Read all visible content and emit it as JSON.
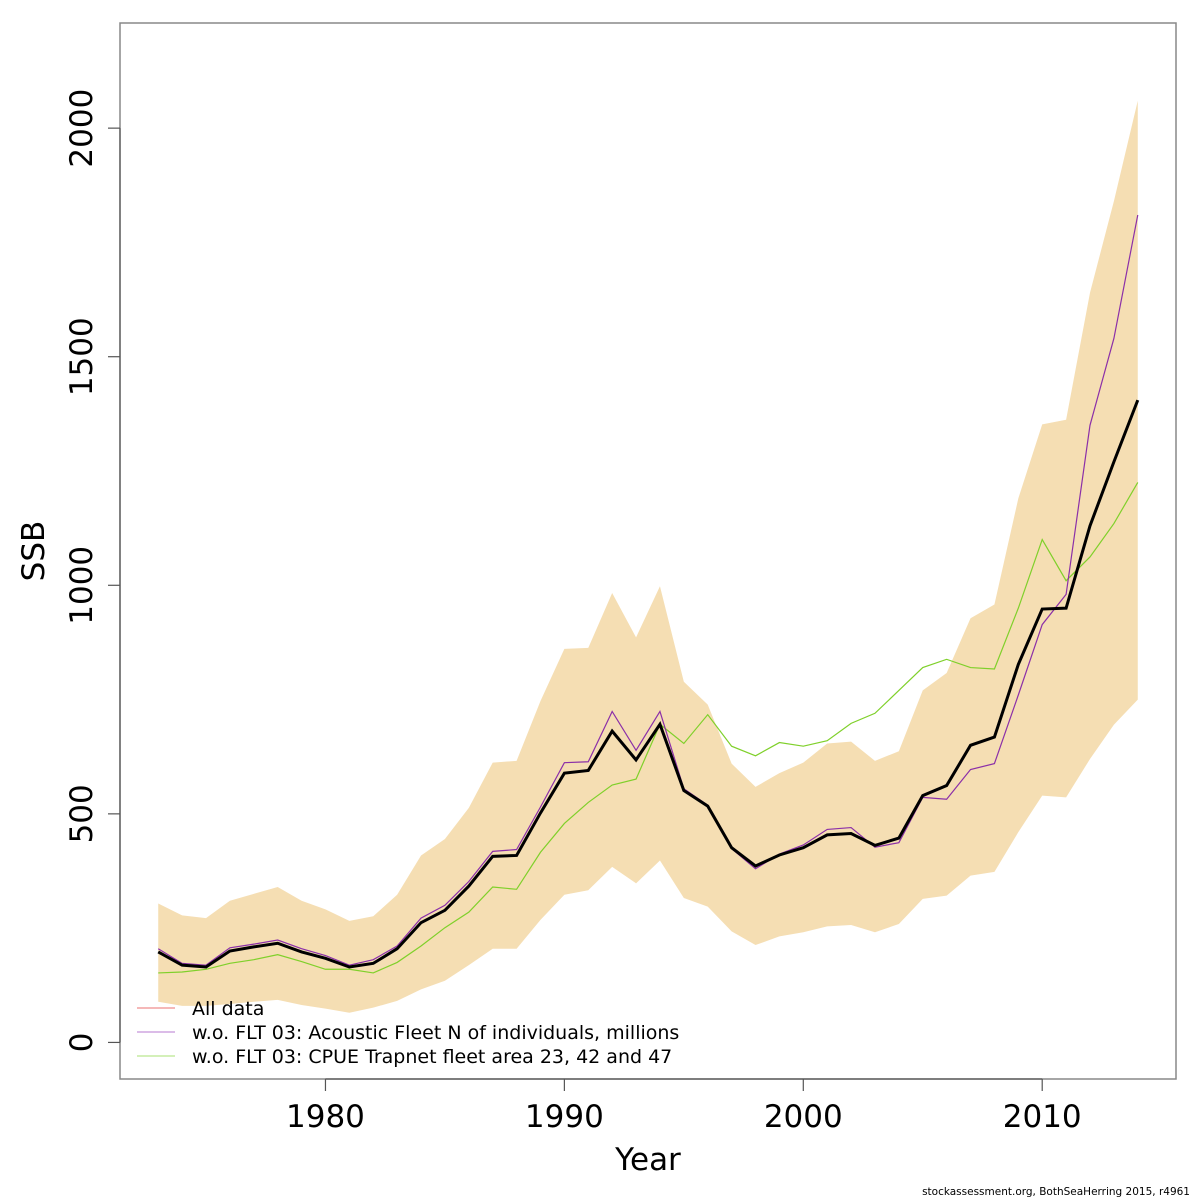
{
  "chart_data": {
    "type": "line",
    "title": "",
    "xlabel": "Year",
    "ylabel": "SSB",
    "xlim": [
      1971.4,
      2015.6
    ],
    "ylim": [
      -80,
      2230
    ],
    "x_ticks": [
      1980,
      1990,
      2000,
      2010
    ],
    "y_ticks": [
      0,
      500,
      1000,
      1500,
      2000
    ],
    "x_tick_labels": [
      "1980",
      "1990",
      "2000",
      "2010"
    ],
    "y_tick_labels": [
      "0",
      "500",
      "1000",
      "1500",
      "2000"
    ],
    "grid": false,
    "legend_position": "bottom-left",
    "x": [
      1973,
      1974,
      1975,
      1976,
      1977,
      1978,
      1979,
      1980,
      1981,
      1982,
      1983,
      1984,
      1985,
      1986,
      1987,
      1988,
      1989,
      1990,
      1991,
      1992,
      1993,
      1994,
      1995,
      1996,
      1997,
      1998,
      1999,
      2000,
      2001,
      2002,
      2003,
      2004,
      2005,
      2006,
      2007,
      2008,
      2009,
      2010,
      2011,
      2012,
      2013,
      2014
    ],
    "confidence_band": {
      "name": "All data confidence interval",
      "color": "#F5DEB3",
      "upper": [
        304,
        278,
        272,
        310,
        325,
        340,
        310,
        291,
        266,
        276,
        323,
        409,
        445,
        513,
        612,
        616,
        747,
        861,
        863,
        983,
        886,
        998,
        789,
        739,
        610,
        559,
        589,
        612,
        654,
        658,
        616,
        637,
        770,
        808,
        928,
        958,
        1190,
        1352,
        1362,
        1640,
        1840,
        2060
      ],
      "lower": [
        89,
        80,
        80,
        84,
        89,
        93,
        82,
        74,
        65,
        76,
        91,
        116,
        135,
        169,
        205,
        205,
        268,
        323,
        333,
        384,
        348,
        398,
        316,
        297,
        243,
        213,
        232,
        241,
        254,
        257,
        241,
        259,
        314,
        321,
        365,
        373,
        460,
        540,
        536,
        620,
        695,
        750
      ]
    },
    "series": [
      {
        "name": "w.o. FLT 03: CPUE Trapnet fleet area 23, 42 and 47",
        "color": "#7FD02A",
        "legend_color": "#C5EBA2",
        "values": [
          152,
          154,
          160,
          173,
          181,
          192,
          177,
          160,
          160,
          152,
          175,
          211,
          251,
          285,
          340,
          335,
          416,
          479,
          525,
          563,
          576,
          696,
          654,
          717,
          648,
          627,
          656,
          648,
          660,
          698,
          720,
          770,
          820,
          838,
          820,
          817,
          950,
          1100,
          1010,
          1062,
          1135,
          1225
        ]
      },
      {
        "name": "w.o. FLT 03: Acoustic Fleet   N of individuals, millions",
        "color": "#8B2FA8",
        "legend_color": "#CFA6E0",
        "values": [
          205,
          173,
          169,
          207,
          215,
          224,
          205,
          190,
          169,
          181,
          211,
          272,
          300,
          352,
          418,
          422,
          515,
          612,
          614,
          724,
          639,
          724,
          555,
          519,
          424,
          380,
          412,
          432,
          466,
          470,
          427,
          437,
          536,
          532,
          597,
          610,
          760,
          914,
          980,
          1350,
          1540,
          1810
        ]
      },
      {
        "name": "All data",
        "color": "#000000",
        "legend_color": "#F2A0A0",
        "values": [
          198,
          169,
          165,
          200,
          209,
          217,
          198,
          184,
          165,
          173,
          205,
          262,
          289,
          342,
          407,
          409,
          502,
          589,
          595,
          681,
          618,
          696,
          551,
          517,
          426,
          386,
          410,
          426,
          454,
          457,
          431,
          447,
          540,
          562,
          650,
          668,
          827,
          948,
          950,
          1130,
          1270,
          1405
        ]
      }
    ],
    "legend": [
      {
        "label": "All data",
        "color": "#F2A0A0"
      },
      {
        "label": "w.o. FLT 03: Acoustic Fleet   N of individuals, millions",
        "color": "#CFA6E0"
      },
      {
        "label": "w.o. FLT 03: CPUE Trapnet fleet area 23, 42 and 47",
        "color": "#C5EBA2"
      }
    ]
  },
  "footer": {
    "credit": "stockassessment.org, BothSeaHerring  2015, r4961"
  }
}
